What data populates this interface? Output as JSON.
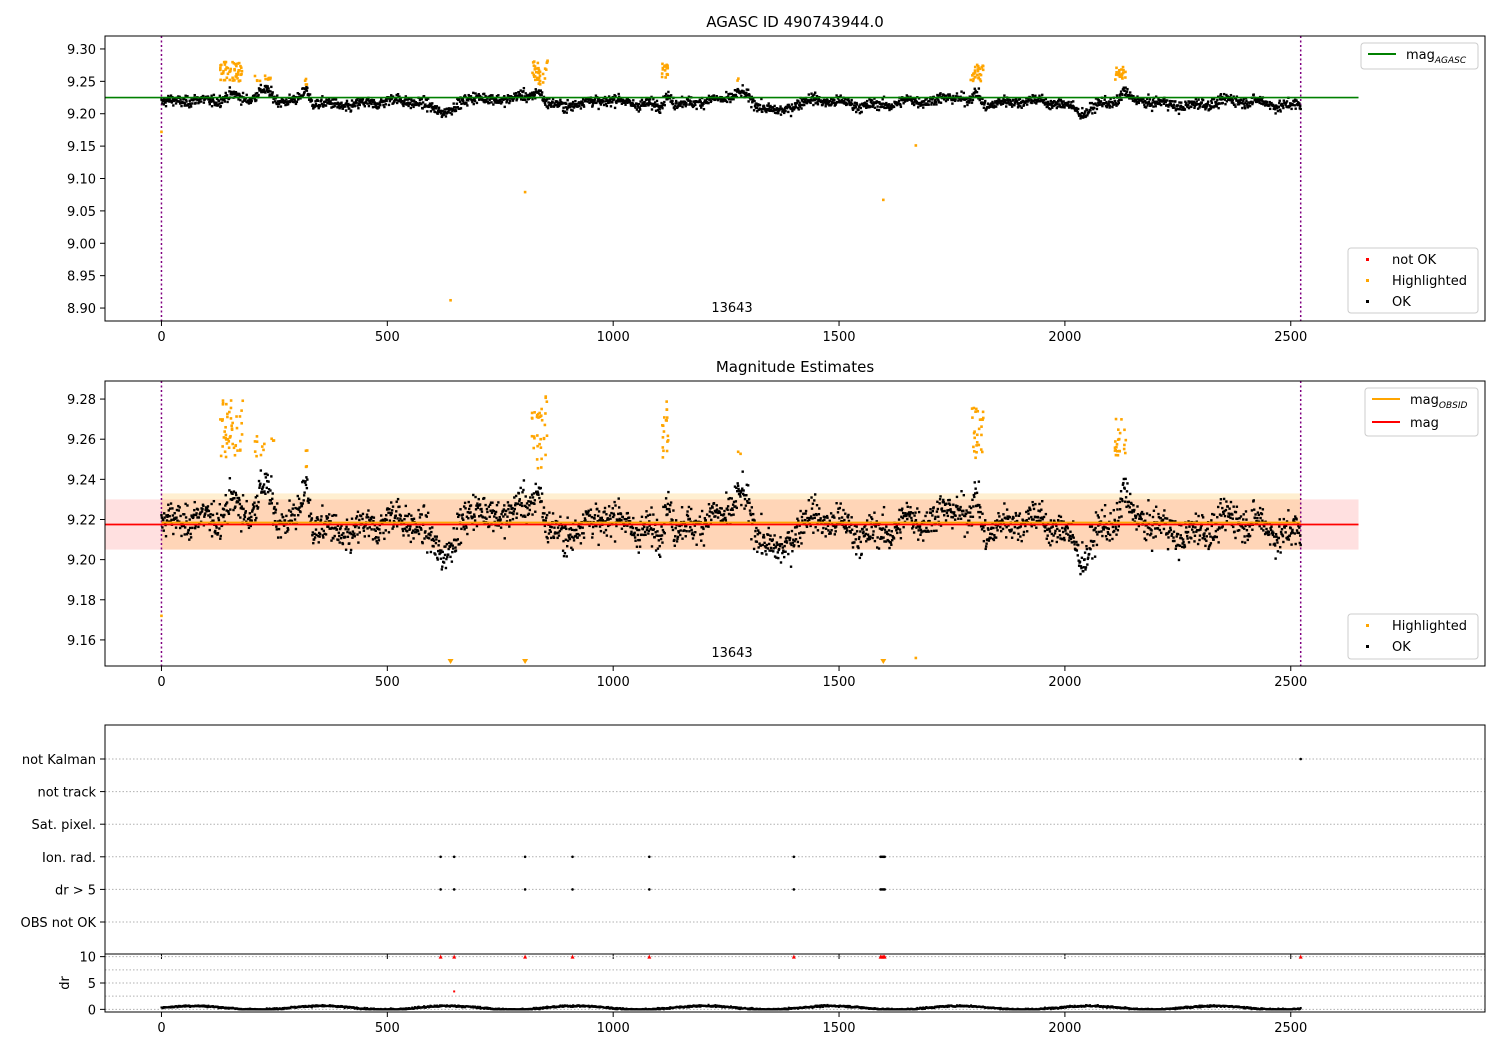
{
  "chart_data": [
    {
      "type": "scatter",
      "title": "AGASC ID 490743944.0",
      "annotation": "13643",
      "xlim": [
        -125,
        2930
      ],
      "ylim": [
        8.88,
        9.32
      ],
      "xticks": [
        0,
        500,
        1000,
        1500,
        2000,
        2500
      ],
      "yticks": [
        8.9,
        8.95,
        9.0,
        9.05,
        9.1,
        9.15,
        9.2,
        9.25,
        9.3
      ],
      "obs_boundaries": [
        0,
        2522
      ],
      "hline": {
        "label": "mag",
        "subscript": "AGASC",
        "value": 9.225,
        "x_range": [
          -125,
          2650
        ],
        "color": "#008000"
      },
      "legend_lines": [
        "mag",
        "AGASC"
      ],
      "legend_points": [
        "not OK",
        "Highlighted",
        "OK"
      ],
      "highlighted_groups": [
        {
          "x": [
            130,
            180
          ],
          "y": [
            9.25,
            9.28
          ],
          "n": 50
        },
        {
          "x": [
            205,
            250
          ],
          "y": [
            9.25,
            9.262
          ],
          "n": 12
        },
        {
          "x": [
            318,
            323
          ],
          "y": [
            9.245,
            9.255
          ],
          "n": 4
        },
        {
          "x": [
            820,
            855
          ],
          "y": [
            9.245,
            9.282
          ],
          "n": 35
        },
        {
          "x": [
            1108,
            1122
          ],
          "y": [
            9.25,
            9.28
          ],
          "n": 18
        },
        {
          "x": [
            1275,
            1282
          ],
          "y": [
            9.25,
            9.258
          ],
          "n": 2
        },
        {
          "x": [
            1790,
            1820
          ],
          "y": [
            9.25,
            9.276
          ],
          "n": 28
        },
        {
          "x": [
            2110,
            2135
          ],
          "y": [
            9.252,
            9.272
          ],
          "n": 22
        }
      ],
      "highlighted_outliers": [
        [
          0,
          9.172
        ],
        [
          640,
          8.912
        ],
        [
          805,
          9.079
        ],
        [
          1598,
          9.067
        ],
        [
          1670,
          9.151
        ]
      ],
      "ok_points": {
        "n": 2500,
        "x_range": [
          0,
          2522
        ],
        "baseline": 9.217,
        "spread": 0.011
      }
    },
    {
      "type": "scatter",
      "title": "Magnitude Estimates",
      "annotation": "13643",
      "xlim": [
        -125,
        2930
      ],
      "ylim": [
        9.147,
        9.289
      ],
      "xticks": [
        0,
        500,
        1000,
        1500,
        2000,
        2500
      ],
      "yticks": [
        9.16,
        9.18,
        9.2,
        9.22,
        9.24,
        9.26,
        9.28
      ],
      "obs_boundaries": [
        0,
        2522
      ],
      "lines": [
        {
          "label": "mag",
          "subscript": "OBSID",
          "value": 9.2185,
          "band": [
            9.205,
            9.233
          ],
          "x_range": [
            0,
            2522
          ],
          "color": "#ffa500"
        },
        {
          "label": "mag",
          "value": 9.2175,
          "band": [
            9.205,
            9.23
          ],
          "x_range": [
            -125,
            2650
          ],
          "color": "#ff0000"
        }
      ],
      "legend_lines": [
        "mag",
        "OBSID",
        "mag"
      ],
      "legend_points": [
        "Highlighted",
        "OK"
      ],
      "highlighted_offscale_markers": [
        640,
        805,
        1598
      ],
      "highlighted_outliers": [
        [
          0,
          9.172
        ],
        [
          1670,
          9.151
        ]
      ]
    },
    {
      "type": "scatter",
      "title": "",
      "xlim": [
        -125,
        2930
      ],
      "xticks": [
        0,
        500,
        1000,
        1500,
        2000,
        2500
      ],
      "categories": [
        "not Kalman",
        "not track",
        "Sat. pixel.",
        "Ion. rad.",
        "dr > 5",
        "OBS not OK"
      ],
      "flags": {
        "Ion. rad.": [
          618,
          648,
          805,
          910,
          1080,
          1400,
          1592,
          1595,
          1598,
          1601
        ],
        "dr > 5": [
          618,
          648,
          805,
          910,
          1080,
          1400,
          1592,
          1595,
          1598,
          1601
        ],
        "not Kalman": [
          2522
        ]
      }
    },
    {
      "type": "scatter",
      "title": "",
      "ylabel": "dr",
      "xlim": [
        -125,
        2930
      ],
      "ylim": [
        -0.5,
        10.5
      ],
      "yticks": [
        0,
        5,
        10
      ],
      "xticks": [
        0,
        500,
        1000,
        1500,
        2000,
        2500
      ],
      "capped_points": {
        "value": 10,
        "x": [
          618,
          648,
          805,
          910,
          1080,
          1400,
          1592,
          1595,
          1598,
          1601,
          2522
        ]
      },
      "extra_points": [
        [
          648,
          3.4
        ]
      ],
      "ok_points": {
        "n": 2500,
        "x_range": [
          0,
          2522
        ],
        "baseline": 0.3
      }
    }
  ]
}
